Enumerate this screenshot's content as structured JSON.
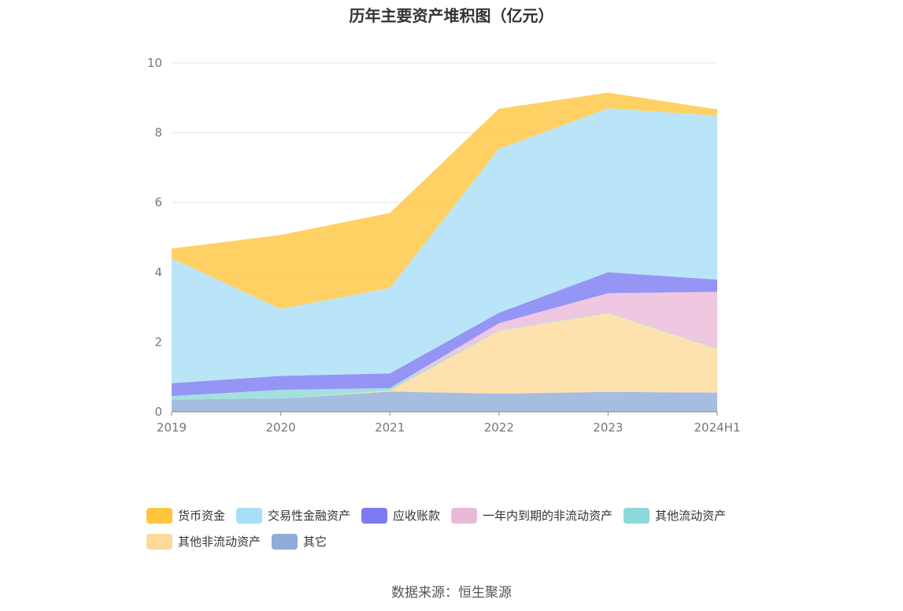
{
  "chart_data": {
    "type": "area",
    "stacked": true,
    "title": "历年主要资产堆积图（亿元）",
    "categories": [
      "2019",
      "2020",
      "2021",
      "2022",
      "2023",
      "2024H1"
    ],
    "ylim": [
      0,
      10
    ],
    "yticks": [
      0,
      2,
      4,
      6,
      8,
      10
    ],
    "grid": true,
    "legend_position": "bottom",
    "series": [
      {
        "name": "其它",
        "color": "#8fadd9",
        "values": [
          0.35,
          0.38,
          0.58,
          0.52,
          0.57,
          0.55
        ]
      },
      {
        "name": "其他非流动资产",
        "color": "#ffd99a",
        "values": [
          0.0,
          0.0,
          0.03,
          1.8,
          2.26,
          1.25
        ]
      },
      {
        "name": "其他流动资产",
        "color": "#8dd8d8",
        "values": [
          0.1,
          0.25,
          0.07,
          0.02,
          0.02,
          0.02
        ]
      },
      {
        "name": "一年内到期的非流动资产",
        "color": "#ebb9d8",
        "values": [
          0.0,
          0.0,
          0.0,
          0.2,
          0.55,
          1.62
        ]
      },
      {
        "name": "应收账款",
        "color": "#7b7bf2",
        "values": [
          0.37,
          0.4,
          0.42,
          0.3,
          0.6,
          0.35
        ]
      },
      {
        "name": "交易性金融资产",
        "color": "#a9def7",
        "values": [
          3.58,
          1.92,
          2.45,
          4.7,
          4.7,
          4.7
        ]
      },
      {
        "name": "货币资金",
        "color": "#ffc53d",
        "values": [
          0.28,
          2.12,
          2.15,
          1.15,
          0.45,
          0.18
        ]
      }
    ],
    "legend_order": [
      "货币资金",
      "交易性金融资产",
      "应收账款",
      "一年内到期的非流动资产",
      "其他流动资产",
      "其他非流动资产",
      "其它"
    ]
  },
  "source": "数据来源：恒生聚源"
}
